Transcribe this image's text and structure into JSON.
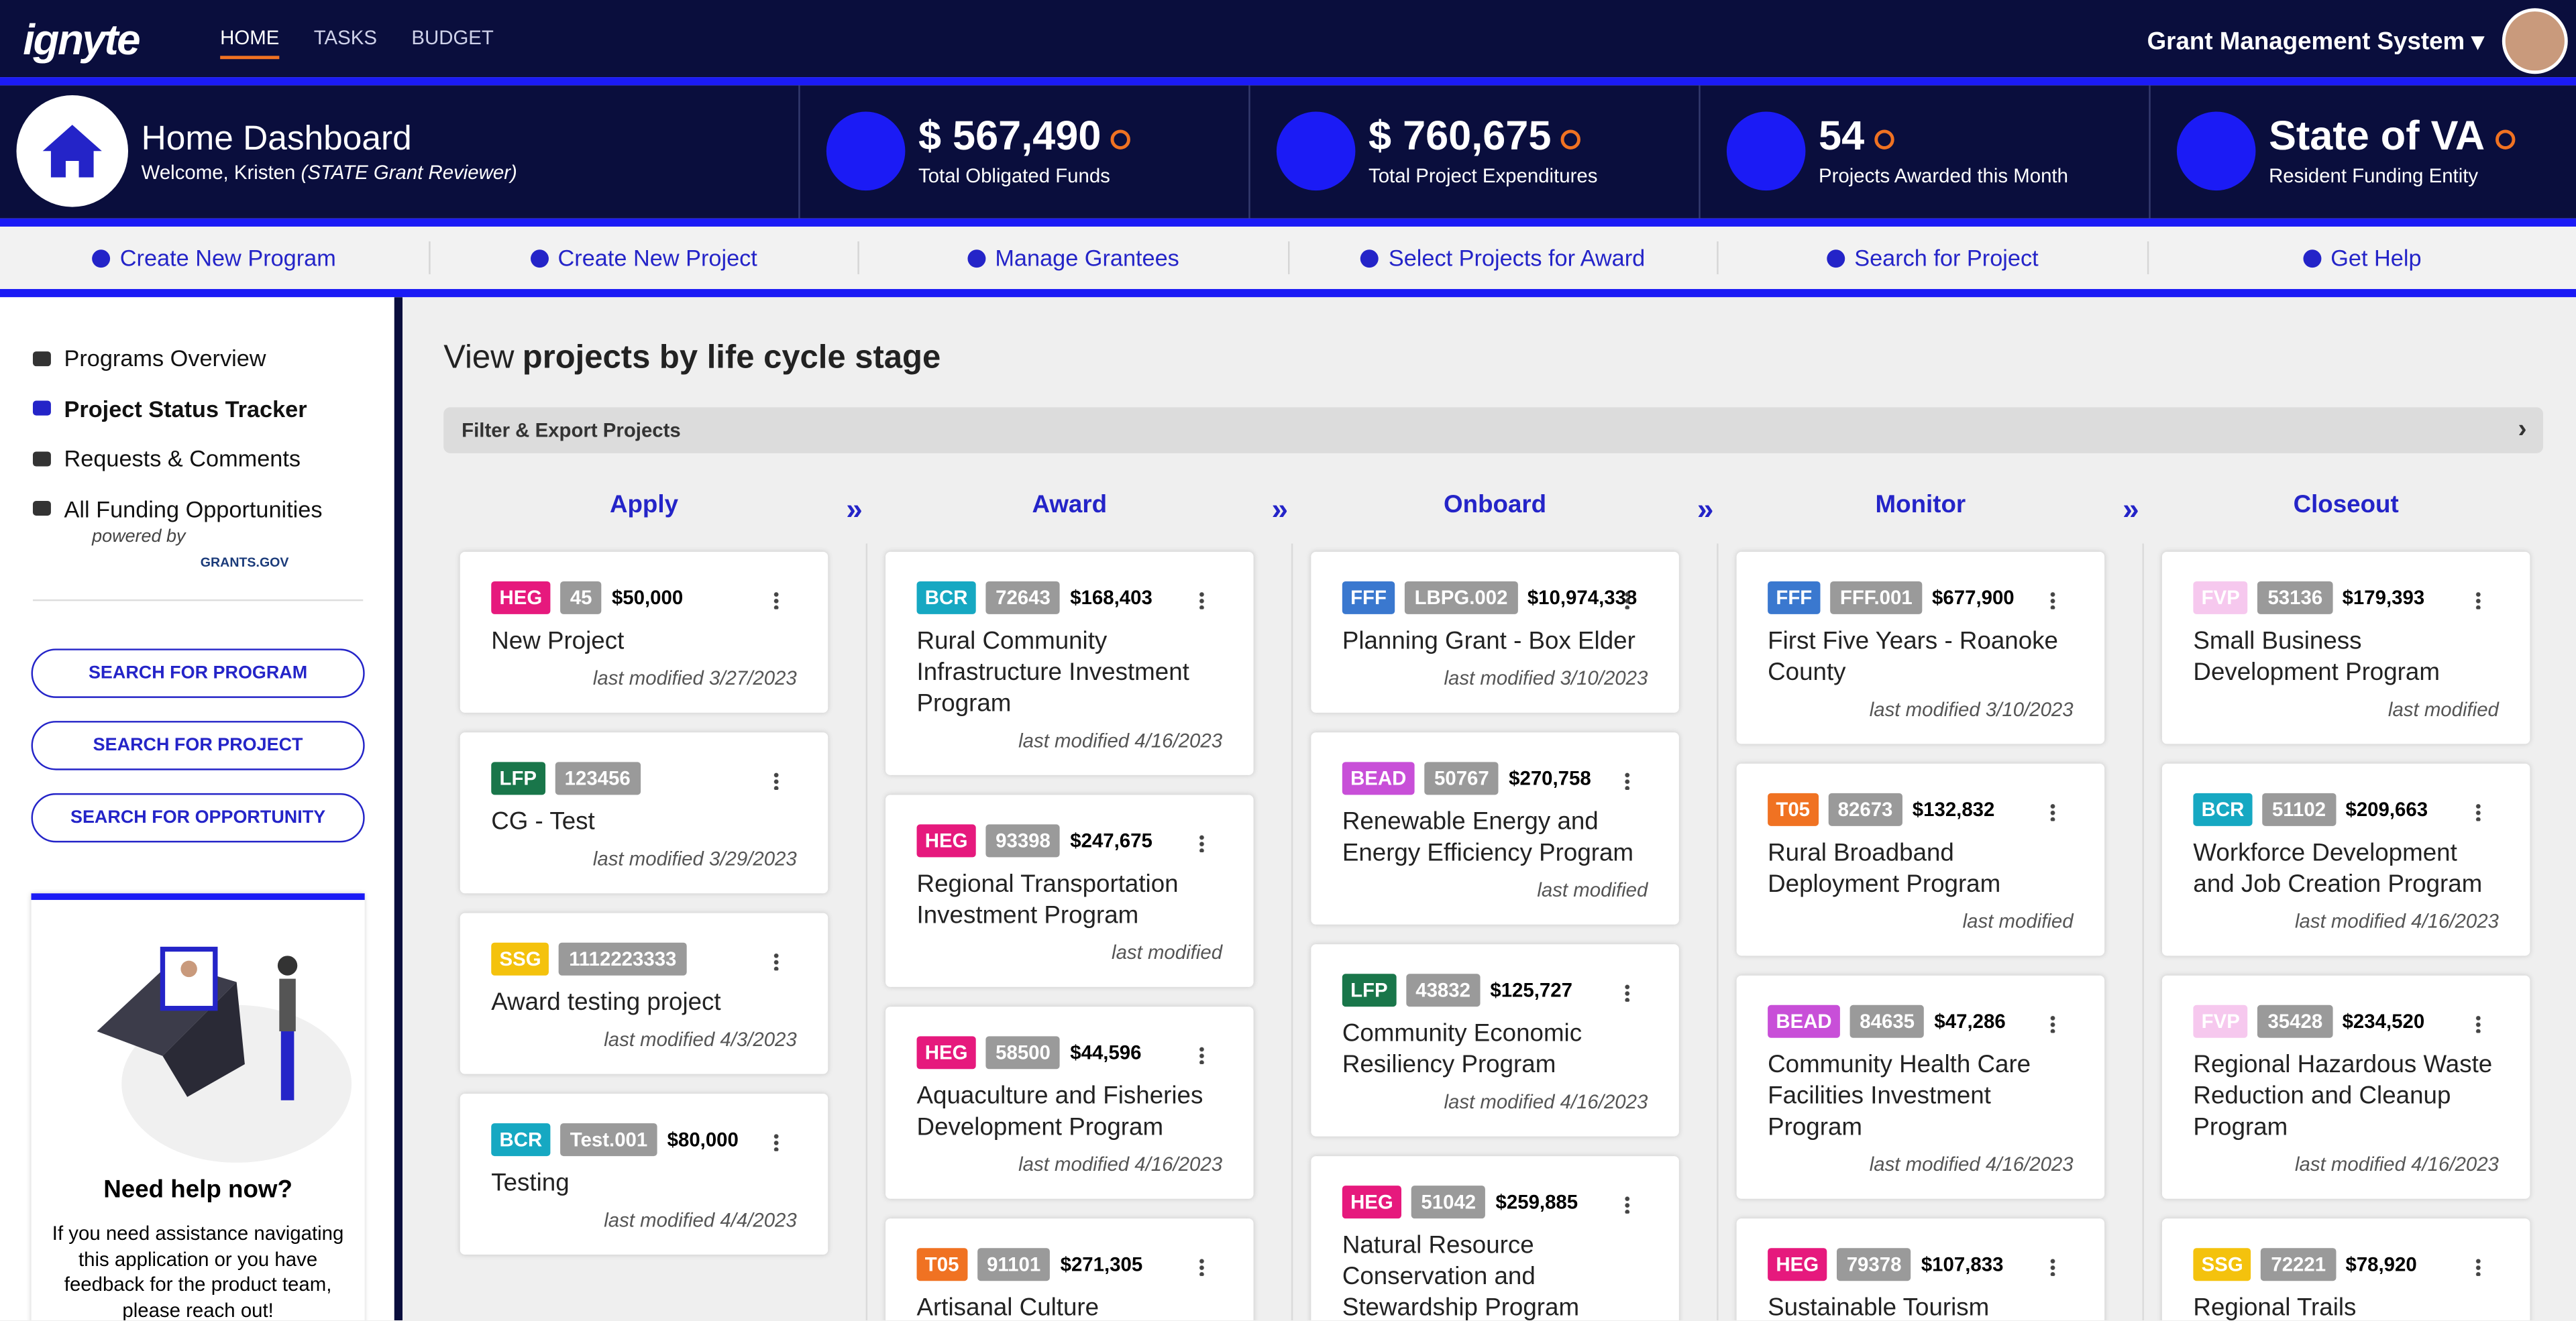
{
  "nav": {
    "logo": "ignyte",
    "links": [
      "HOME",
      "TASKS",
      "BUDGET"
    ],
    "system": "Grant Management System"
  },
  "header": {
    "title": "Home Dashboard",
    "welcome": "Welcome, Kristen",
    "role": "(STATE Grant Reviewer)",
    "stats": [
      {
        "value": "$ 567,490",
        "label": "Total Obligated Funds"
      },
      {
        "value": "$ 760,675",
        "label": "Total Project Expenditures"
      },
      {
        "value": "54",
        "label": "Projects Awarded this Month"
      },
      {
        "value": "State of VA",
        "label": "Resident Funding Entity"
      }
    ]
  },
  "actions": [
    "Create New Program",
    "Create New Project",
    "Manage Grantees",
    "Select Projects for Award",
    "Search for Project",
    "Get Help"
  ],
  "sidebar": {
    "menu": [
      "Programs Overview",
      "Project Status Tracker",
      "Requests & Comments",
      "All Funding Opportunities"
    ],
    "powered_by": "powered by",
    "partner": "GRANTS.GOV",
    "buttons": [
      "SEARCH FOR PROGRAM",
      "SEARCH FOR PROJECT",
      "SEARCH FOR OPPORTUNITY"
    ],
    "help": {
      "title": "Need help now?",
      "text": "If you need assistance navigating this application or you have feedback for the product team, please reach out!"
    }
  },
  "main": {
    "heading_prefix": "View",
    "heading_bold": "projects by life cycle stage",
    "filter": "Filter & Export Projects",
    "columns": [
      {
        "name": "Apply",
        "cards": [
          {
            "tag": "HEG",
            "color": "#e6197d",
            "id": "45",
            "amount": "$50,000",
            "title": "New Project",
            "modified": "last modified 3/27/2023"
          },
          {
            "tag": "LFP",
            "color": "#19764a",
            "id": "123456",
            "title": "CG - Test",
            "modified": "last modified 3/29/2023"
          },
          {
            "tag": "SSG",
            "color": "#f4c20d",
            "id": "1112223333",
            "title": "Award testing project",
            "modified": "last modified 4/3/2023"
          },
          {
            "tag": "BCR",
            "color": "#16a8c2",
            "id": "Test.001",
            "amount": "$80,000",
            "title": "Testing",
            "modified": "last modified 4/4/2023"
          }
        ]
      },
      {
        "name": "Award",
        "cards": [
          {
            "tag": "BCR",
            "color": "#16a8c2",
            "id": "72643",
            "amount": "$168,403",
            "title": "Rural Community Infrastructure Investment Program",
            "modified": "last modified 4/16/2023"
          },
          {
            "tag": "HEG",
            "color": "#e6197d",
            "id": "93398",
            "amount": "$247,675",
            "title": "Regional Transportation Investment Program",
            "modified": "last modified"
          },
          {
            "tag": "HEG",
            "color": "#e6197d",
            "id": "58500",
            "amount": "$44,596",
            "title": "Aquaculture and Fisheries Development Program",
            "modified": "last modified 4/16/2023"
          },
          {
            "tag": "T05",
            "color": "#f07222",
            "id": "91101",
            "amount": "$271,305",
            "title": "Artisanal Culture Preservation"
          }
        ]
      },
      {
        "name": "Onboard",
        "cards": [
          {
            "tag": "FFF",
            "color": "#3a78cf",
            "id": "LBPG.002",
            "amount": "$10,974,338",
            "title": "Planning Grant - Box Elder",
            "modified": "last modified 3/10/2023"
          },
          {
            "tag": "BEAD",
            "color": "#c84fd8",
            "id": "50767",
            "amount": "$270,758",
            "title": "Renewable Energy and Energy Efficiency Program",
            "modified": "last modified"
          },
          {
            "tag": "LFP",
            "color": "#19764a",
            "id": "43832",
            "amount": "$125,727",
            "title": "Community Economic Resiliency Program",
            "modified": "last modified 4/16/2023"
          },
          {
            "tag": "HEG",
            "color": "#e6197d",
            "id": "51042",
            "amount": "$259,885",
            "title": "Natural Resource Conservation and Stewardship Program"
          }
        ]
      },
      {
        "name": "Monitor",
        "cards": [
          {
            "tag": "FFF",
            "color": "#3a78cf",
            "id": "FFF.001",
            "amount": "$677,900",
            "title": "First Five Years - Roanoke County",
            "modified": "last modified 3/10/2023"
          },
          {
            "tag": "T05",
            "color": "#f07222",
            "id": "82673",
            "amount": "$132,832",
            "title": "Rural Broadband Deployment Program",
            "modified": "last modified"
          },
          {
            "tag": "BEAD",
            "color": "#c84fd8",
            "id": "84635",
            "amount": "$47,286",
            "title": "Community Health Care Facilities Investment Program",
            "modified": "last modified 4/16/2023"
          },
          {
            "tag": "HEG",
            "color": "#e6197d",
            "id": "79378",
            "amount": "$107,833",
            "title": "Sustainable Tourism"
          }
        ]
      },
      {
        "name": "Closeout",
        "cards": [
          {
            "tag": "FVP",
            "color": "#f6c8ee",
            "id": "53136",
            "amount": "$179,393",
            "title": "Small Business Development Program",
            "modified": "last modified"
          },
          {
            "tag": "BCR",
            "color": "#16a8c2",
            "id": "51102",
            "amount": "$209,663",
            "title": "Workforce Development and Job Creation Program",
            "modified": "last modified 4/16/2023"
          },
          {
            "tag": "FVP",
            "color": "#f6c8ee",
            "id": "35428",
            "amount": "$234,520",
            "title": "Regional Hazardous Waste Reduction and Cleanup Program",
            "modified": "last modified 4/16/2023"
          },
          {
            "tag": "SSG",
            "color": "#f4c20d",
            "id": "72221",
            "amount": "$78,920",
            "title": "Regional Trails"
          }
        ]
      }
    ]
  }
}
